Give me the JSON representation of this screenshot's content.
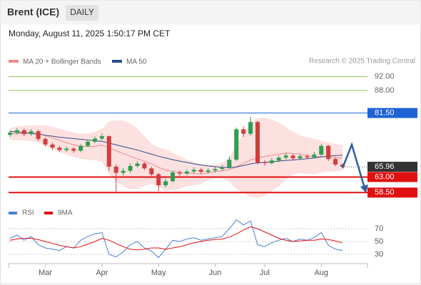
{
  "header": {
    "title": "Brent (ICE)",
    "period": "DAILY",
    "timestamp": "Monday, August 11, 2025 1:50:17 PM CET",
    "credit": "Research © 2025 Trading Central"
  },
  "chart_data": [
    {
      "type": "candlestick",
      "categories": [
        null,
        null,
        null,
        null,
        null,
        "Mar",
        null,
        null,
        null,
        null,
        null,
        null,
        null,
        "Apr",
        null,
        null,
        null,
        null,
        null,
        null,
        null,
        "May",
        null,
        null,
        null,
        null,
        null,
        null,
        null,
        "Jun",
        null,
        null,
        null,
        null,
        null,
        null,
        "Jul",
        null,
        null,
        null,
        null,
        null,
        null,
        null,
        "Aug",
        null,
        null,
        null
      ],
      "open": [
        75.2,
        75.8,
        76.5,
        75.4,
        76.2,
        74.0,
        72.4,
        71.5,
        70.8,
        71.2,
        70.6,
        72.0,
        73.2,
        74.1,
        74.8,
        66.0,
        64.2,
        64.8,
        66.2,
        66.9,
        65.5,
        63.8,
        60.6,
        61.8,
        64.3,
        64.0,
        64.6,
        65.1,
        64.5,
        64.9,
        65.3,
        65.8,
        68.0,
        76.8,
        75.5,
        78.9,
        67.2,
        67.0,
        67.8,
        68.6,
        69.2,
        68.4,
        69.0,
        68.7,
        69.5,
        72.0,
        68.2,
        66.6
      ],
      "high": [
        76.5,
        77.2,
        77.0,
        76.9,
        76.6,
        74.5,
        72.9,
        72.0,
        71.8,
        71.7,
        72.5,
        73.8,
        74.7,
        75.6,
        75.0,
        66.6,
        65.6,
        66.9,
        67.6,
        67.3,
        66.0,
        64.2,
        62.5,
        64.9,
        64.9,
        65.2,
        65.8,
        65.6,
        65.5,
        65.9,
        66.5,
        69.0,
        77.3,
        77.6,
        80.4,
        79.2,
        67.9,
        68.5,
        69.2,
        69.9,
        69.7,
        69.6,
        69.5,
        70.2,
        72.6,
        72.3,
        68.7,
        67.0
      ],
      "low": [
        74.6,
        75.2,
        74.8,
        74.9,
        73.4,
        71.8,
        70.9,
        70.2,
        70.3,
        70.0,
        70.2,
        71.6,
        72.8,
        73.6,
        64.8,
        58.8,
        63.4,
        64.2,
        65.7,
        64.9,
        63.0,
        58.9,
        60.0,
        61.4,
        63.3,
        63.5,
        64.1,
        63.9,
        63.9,
        64.3,
        64.8,
        65.4,
        67.6,
        74.6,
        75.0,
        66.6,
        66.3,
        66.6,
        67.3,
        68.1,
        67.8,
        67.9,
        68.1,
        68.3,
        69.1,
        67.6,
        66.1,
        65.5
      ],
      "close": [
        75.8,
        76.5,
        75.4,
        76.2,
        74.0,
        72.4,
        71.5,
        70.8,
        71.2,
        70.6,
        72.0,
        73.2,
        74.1,
        74.8,
        66.0,
        64.2,
        64.8,
        66.2,
        66.9,
        65.5,
        63.8,
        60.6,
        61.8,
        64.3,
        64.0,
        64.6,
        65.1,
        64.5,
        64.9,
        65.3,
        65.8,
        68.0,
        76.8,
        75.5,
        78.9,
        67.2,
        67.0,
        67.8,
        68.6,
        69.2,
        68.4,
        69.0,
        68.7,
        69.5,
        72.0,
        68.2,
        66.6,
        65.96
      ],
      "up_color": "#2e9e4f",
      "down_color": "#d43c3c",
      "series": [
        {
          "name": "MA 20 + Bollinger Bands",
          "color": "#f08a8a",
          "values": [
            75.5,
            75.6,
            75.7,
            75.7,
            75.5,
            75.0,
            74.3,
            73.6,
            72.9,
            72.3,
            71.9,
            71.8,
            71.9,
            72.2,
            71.5,
            70.6,
            69.8,
            69.0,
            68.3,
            67.6,
            66.8,
            65.8,
            65.0,
            64.6,
            64.3,
            64.2,
            64.0,
            63.9,
            64.2,
            64.6,
            64.8,
            65.1,
            66.0,
            66.9,
            67.9,
            68.5,
            68.9,
            69.3,
            69.6,
            69.9,
            69.8,
            69.6,
            69.2,
            68.9,
            68.9,
            68.8,
            68.6,
            68.5
          ],
          "upper": [
            77.2,
            77.6,
            77.8,
            78.0,
            78.0,
            77.9,
            77.5,
            77.0,
            76.4,
            75.8,
            75.5,
            75.6,
            76.0,
            77.0,
            79.0,
            79.5,
            79.3,
            78.5,
            77.0,
            74.8,
            72.6,
            71.5,
            71.0,
            70.0,
            69.0,
            68.0,
            67.4,
            66.8,
            66.4,
            66.6,
            67.0,
            68.5,
            72.5,
            75.5,
            78.5,
            80.0,
            80.2,
            79.6,
            78.8,
            77.5,
            76.0,
            75.0,
            74.5,
            74.0,
            73.5,
            73.0,
            72.6,
            72.2
          ],
          "lower": [
            73.8,
            73.6,
            73.6,
            73.4,
            73.0,
            72.1,
            71.1,
            70.2,
            69.4,
            68.8,
            68.3,
            68.0,
            67.8,
            67.4,
            64.0,
            61.7,
            60.3,
            59.5,
            59.6,
            60.4,
            61.0,
            60.1,
            59.0,
            59.2,
            59.6,
            60.4,
            60.6,
            61.0,
            62.0,
            62.6,
            62.6,
            61.7,
            59.5,
            58.3,
            57.3,
            57.0,
            57.6,
            59.0,
            60.4,
            62.3,
            63.6,
            64.2,
            63.9,
            63.8,
            64.3,
            64.6,
            64.6,
            64.8
          ],
          "band_color": "#fde0e0"
        },
        {
          "name": "MA 50",
          "color": "#2b4f8c",
          "values": [
            76.2,
            76.0,
            75.8,
            75.6,
            75.4,
            75.1,
            74.8,
            74.5,
            74.3,
            74.1,
            73.9,
            73.7,
            73.5,
            73.3,
            72.8,
            72.3,
            71.8,
            71.3,
            70.8,
            70.2,
            69.6,
            69.0,
            68.5,
            68.0,
            67.6,
            67.2,
            66.8,
            66.5,
            66.2,
            66.0,
            65.8,
            65.7,
            65.9,
            66.3,
            66.8,
            67.1,
            67.2,
            67.4,
            67.6,
            67.8,
            67.9,
            68.1,
            68.3,
            68.5,
            68.8,
            69.0,
            69.2,
            69.3
          ]
        }
      ],
      "ylim": [
        56.5,
        94.6
      ],
      "levels": [
        {
          "value": 92,
          "label": "92.00",
          "color": "#8bc34a",
          "boxed": false
        },
        {
          "value": 88,
          "label": "88.00",
          "color": "#8bc34a",
          "boxed": false
        },
        {
          "value": 81.5,
          "label": "81.50",
          "color": "#1e63d6",
          "boxed": true
        },
        {
          "value": 65.96,
          "label": "65.96",
          "color": "#333333",
          "boxed": true,
          "dotted": true
        },
        {
          "value": 63,
          "label": "63.00",
          "color": "#e01010",
          "boxed": true
        },
        {
          "value": 58.5,
          "label": "58.50",
          "color": "#e01010",
          "boxed": true
        }
      ]
    },
    {
      "type": "line",
      "series": [
        {
          "name": "RSI",
          "color": "#4a7fd4",
          "values": [
            55,
            60,
            52,
            58,
            45,
            40,
            38,
            36,
            42,
            40,
            52,
            58,
            62,
            64,
            30,
            26,
            34,
            45,
            50,
            40,
            35,
            25,
            38,
            52,
            50,
            54,
            56,
            52,
            54,
            56,
            58,
            70,
            84,
            76,
            82,
            45,
            42,
            48,
            52,
            55,
            50,
            54,
            52,
            56,
            64,
            44,
            38,
            36
          ]
        },
        {
          "name": "9MA",
          "color": "#e01010",
          "values": [
            52,
            54,
            55,
            55,
            53,
            50,
            47,
            44,
            42,
            40,
            42,
            46,
            50,
            55,
            52,
            47,
            42,
            38,
            37,
            38,
            40,
            40,
            38,
            40,
            42,
            45,
            48,
            50,
            52,
            53,
            54,
            57,
            62,
            68,
            73,
            70,
            65,
            60,
            55,
            52,
            50,
            51,
            52,
            52,
            54,
            53,
            51,
            48
          ]
        }
      ],
      "ylim": [
        20,
        100
      ],
      "yticks": [
        30,
        50,
        70
      ],
      "grid": true
    }
  ]
}
